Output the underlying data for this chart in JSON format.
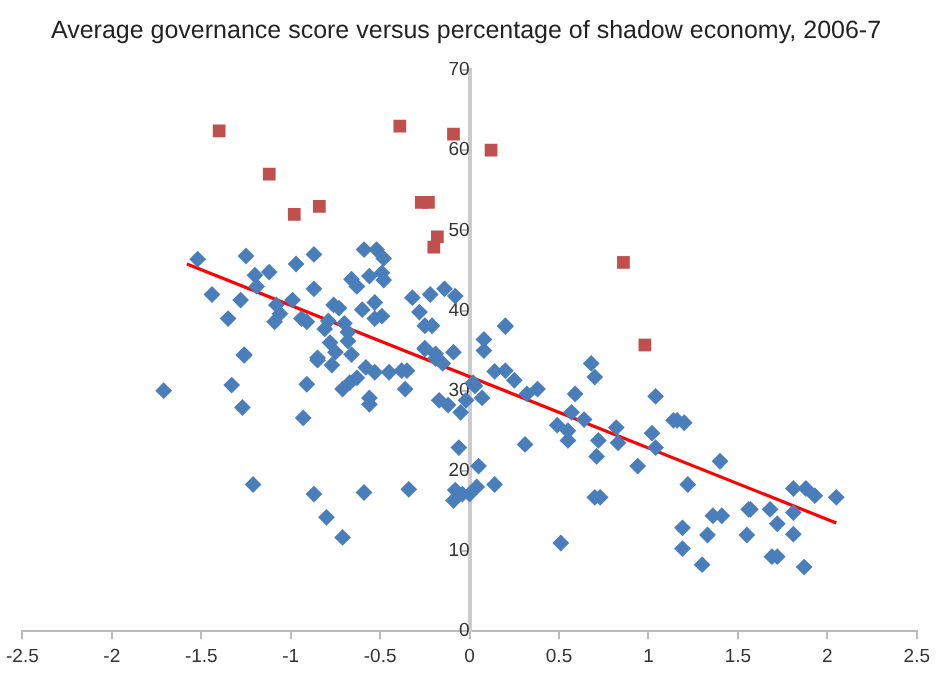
{
  "chart_data": {
    "type": "scatter",
    "title": "Average governance score versus percentage of shadow economy, 2006-7",
    "xlim": [
      -2.5,
      2.5
    ],
    "xticks": [
      -2.5,
      -2,
      -1.5,
      -1,
      -0.5,
      0,
      0.5,
      1,
      1.5,
      2,
      2.5
    ],
    "ylim": [
      0,
      70
    ],
    "yticks": [
      0,
      10,
      20,
      30,
      40,
      50,
      60,
      70
    ],
    "grid": false,
    "legend": false,
    "series": [
      {
        "type": "scatter",
        "marker": "diamond",
        "color": "#4a7ebb",
        "x": [
          -1.52,
          -1.44,
          -1.35,
          -1.25,
          -1.2,
          -1.12,
          -1.28,
          -1.19,
          -1.08,
          -1.09,
          -1.06,
          -0.99,
          -0.97,
          -0.87,
          -0.87,
          -0.94,
          -0.91,
          -0.79,
          -0.81,
          -0.76,
          -0.73,
          -0.7,
          -0.66,
          -0.63,
          -0.59,
          -0.56,
          -0.6,
          -0.52,
          -0.48,
          -0.49,
          -0.48,
          -0.53,
          -0.53,
          -0.49,
          -0.68,
          -0.78,
          -0.85,
          -1.26,
          -0.32,
          -0.28,
          -0.25,
          -0.21,
          -0.14,
          -0.22,
          -0.08,
          -0.25,
          -0.19,
          -0.09,
          0.08,
          0.08,
          0.2,
          0.68,
          -1.71,
          -1.33,
          -1.26,
          -1.27,
          -1.21,
          -0.93,
          -0.91,
          -0.85,
          -0.87,
          -0.8,
          -0.71,
          -0.77,
          -0.75,
          -0.71,
          -0.67,
          -0.63,
          -0.68,
          -0.66,
          -0.59,
          -0.58,
          -0.53,
          -0.56,
          -0.56,
          -0.45,
          -0.38,
          -0.35,
          -0.36,
          -0.34,
          -0.25,
          -0.19,
          -0.15,
          -0.17,
          -0.12,
          -0.05,
          -0.02,
          -0.06,
          -0.08,
          -0.04,
          -0.09,
          0.03,
          0.04,
          0.05,
          0.2,
          0.02,
          0.07,
          0.14,
          0.2,
          0.25,
          0.32,
          0.38,
          0.31,
          0.14,
          0,
          0.49,
          0.55,
          0.55,
          0.57,
          0.59,
          0.64,
          0.7,
          0.72,
          0.71,
          0.7,
          0.73,
          0.51,
          0.82,
          0.83,
          0.94,
          1.02,
          1.04,
          1.04,
          1.14,
          1.16,
          1.2,
          1.22,
          1.19,
          1.19,
          1.3,
          1.33,
          1.36,
          1.41,
          1.4,
          1.55,
          1.56,
          1.57,
          1.68,
          1.69,
          1.72,
          1.72,
          1.81,
          1.81,
          1.81,
          1.87,
          1.88,
          1.93,
          2.05
        ],
        "values": [
          46.4,
          42,
          39,
          46.8,
          44.4,
          44.8,
          41.3,
          43,
          40.7,
          38.6,
          39.6,
          41.3,
          45.8,
          47,
          42.7,
          39,
          38.6,
          38.7,
          37.7,
          40.7,
          40.3,
          38.4,
          43.9,
          43,
          47.6,
          44.3,
          40.1,
          47.6,
          46.5,
          44.7,
          43.8,
          41,
          39,
          39.3,
          37.3,
          36,
          34.1,
          34.5,
          41.6,
          39.8,
          38.1,
          38.1,
          42.7,
          42,
          41.8,
          35.2,
          34.6,
          34.8,
          36.4,
          35,
          38.1,
          33.4,
          30,
          30.7,
          34.4,
          27.9,
          18.3,
          26.6,
          30.8,
          33.8,
          17.1,
          14.2,
          11.7,
          33.2,
          34.8,
          30.2,
          31,
          31.6,
          36.2,
          34.5,
          17.3,
          32.9,
          32.3,
          29.1,
          28.3,
          32.3,
          32.5,
          32.5,
          30.2,
          17.7,
          35.3,
          34,
          33.4,
          28.8,
          28.2,
          27.3,
          28.8,
          22.9,
          17.6,
          17.1,
          16.3,
          30.6,
          18,
          20.6,
          38,
          31,
          29.1,
          32.4,
          32.5,
          31.3,
          29.6,
          30.2,
          23.3,
          18.3,
          17.1,
          25.7,
          25,
          23.8,
          27.3,
          29.6,
          26.4,
          31.7,
          23.8,
          21.8,
          16.7,
          16.7,
          11,
          25.4,
          23.5,
          20.6,
          24.7,
          22.9,
          29.3,
          26.3,
          26.3,
          26,
          18.3,
          12.9,
          10.3,
          8.3,
          12,
          14.4,
          14.4,
          21.2,
          12,
          15.2,
          15.2,
          15.2,
          9.3,
          9.3,
          13.4,
          17.8,
          14.8,
          12.1,
          8,
          17.8,
          16.9,
          16.7
        ]
      },
      {
        "type": "scatter",
        "marker": "square",
        "color": "#c0504d",
        "x": [
          -1.4,
          -1.12,
          -0.98,
          -0.84,
          -0.39,
          -0.27,
          -0.23,
          -0.18,
          -0.2,
          -0.09,
          0.12,
          0.86,
          0.98
        ],
        "values": [
          62.4,
          57,
          52,
          53,
          63,
          53.5,
          53.5,
          49.2,
          47.9,
          62,
          60,
          46,
          35.7
        ]
      },
      {
        "type": "line",
        "marker": "none",
        "line_style": "solid",
        "color": "#ff0000",
        "x": [
          -1.58,
          2.05
        ],
        "values": [
          45.8,
          13.5
        ]
      }
    ]
  }
}
